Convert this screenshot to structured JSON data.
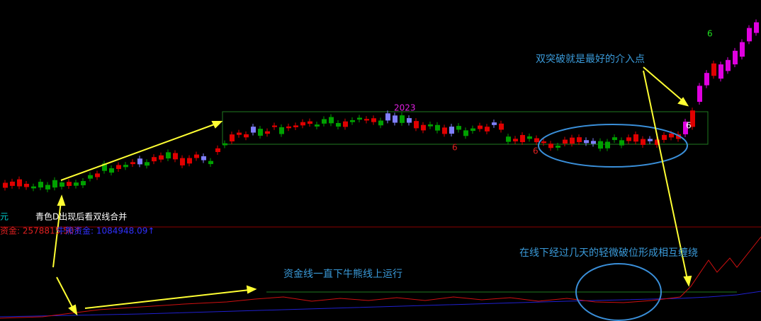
{
  "panel": {
    "unit_label": "元",
    "hint": "青色D出现后看双线合并",
    "fund_line": "资金: 2578815.50↑",
    "bull_bear_line": "牛熊资金: 1084948.09↑"
  },
  "annotations": {
    "breakout": "双突破就是最好的介入点",
    "entangle": "在线下经过几天的轻微破位形成相互缠绕",
    "fund_below": "资金线一直下牛熊线上运行"
  },
  "markers": {
    "year": "2023",
    "six_a": "6",
    "six_b": "6",
    "six_c": "6",
    "six_d": "6"
  }
}
